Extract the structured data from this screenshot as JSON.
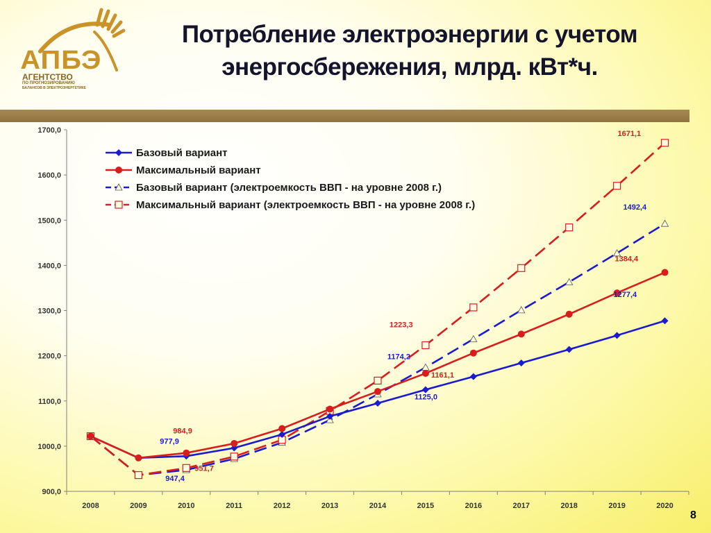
{
  "header": {
    "title_line1": "Потребление электроэнергии с учетом",
    "title_line2": "энергосбережения, млрд. кВт*ч."
  },
  "logo": {
    "name": "АПБЭ",
    "sub1": "АГЕНТСТВО",
    "sub2": "ПО ПРОГНОЗИРОВАНИЮ",
    "sub3": "БАЛАНСОВ В ЭЛЕКТРОЭНЕРГЕТИКЕ"
  },
  "page_number": "8",
  "colors": {
    "blue": "#1a1acf",
    "red": "#d81d1d",
    "band": "#97794a",
    "logo_gold": "#c9932a"
  },
  "chart_data": {
    "type": "line",
    "title": "",
    "xlabel": "",
    "ylabel": "",
    "x": [
      "2008",
      "2009",
      "2010",
      "2011",
      "2012",
      "2013",
      "2014",
      "2015",
      "2016",
      "2017",
      "2018",
      "2019",
      "2020"
    ],
    "ylim": [
      900,
      1700
    ],
    "yticks": [
      "900,0",
      "1000,0",
      "1100,0",
      "1200,0",
      "1300,0",
      "1400,0",
      "1500,0",
      "1600,0",
      "1700,0"
    ],
    "grid": false,
    "legend_position": "top-left",
    "series": [
      {
        "name": "Базовый вариант",
        "style": "solid",
        "marker": "diamond",
        "color": "#1a1acf",
        "values": [
          1022,
          974,
          977.9,
          996,
          1026,
          1066,
          1095,
          1125,
          1154,
          1184,
          1214,
          1245,
          1277.4
        ]
      },
      {
        "name": "Максимальный вариант",
        "style": "solid",
        "marker": "circle",
        "color": "#d81d1d",
        "values": [
          1022,
          974,
          984.9,
          1006,
          1039,
          1082,
          1121,
          1161.1,
          1206,
          1248,
          1292,
          1339,
          1384.4
        ]
      },
      {
        "name": "Базовый вариант (электроемкость ВВП - на уровне 2008 г.)",
        "style": "dashed",
        "marker": "triangle",
        "color": "#1a1acf",
        "values": [
          1022,
          936,
          947.4,
          972,
          1008,
          1058,
          1115,
          1174.2,
          1237,
          1301,
          1363,
          1427,
          1492.4
        ]
      },
      {
        "name": "Максимальный вариант (электроемкость ВВП - на уровне 2008 г.)",
        "style": "dashed",
        "marker": "square",
        "color": "#d81d1d",
        "values": [
          1022,
          936,
          951.7,
          977,
          1014,
          1078,
          1145,
          1223.3,
          1307,
          1394,
          1484,
          1576,
          1671.1
        ]
      }
    ],
    "annotations": [
      {
        "text": "977,9",
        "color": "blue",
        "data_x": "2010",
        "data_y": 977.9
      },
      {
        "text": "984,9",
        "color": "red",
        "data_x": "2010",
        "data_y": 984.9
      },
      {
        "text": "947,4",
        "color": "blue",
        "data_x": "2010",
        "data_y": 947.4
      },
      {
        "text": "951,7",
        "color": "red",
        "data_x": "2010",
        "data_y": 951.7
      },
      {
        "text": "1174,2",
        "color": "blue",
        "data_x": "2015",
        "data_y": 1174.2
      },
      {
        "text": "1161,1",
        "color": "red",
        "data_x": "2015",
        "data_y": 1161.1
      },
      {
        "text": "1125,0",
        "color": "blue",
        "data_x": "2015",
        "data_y": 1125.0
      },
      {
        "text": "1223,3",
        "color": "red",
        "data_x": "2015",
        "data_y": 1223.3
      },
      {
        "text": "1671,1",
        "color": "red",
        "data_x": "2020",
        "data_y": 1671.1
      },
      {
        "text": "1492,4",
        "color": "blue",
        "data_x": "2020",
        "data_y": 1492.4
      },
      {
        "text": "1384,4",
        "color": "red",
        "data_x": "2020",
        "data_y": 1384.4
      },
      {
        "text": "1277,4",
        "color": "blue",
        "data_x": "2020",
        "data_y": 1277.4
      }
    ]
  }
}
